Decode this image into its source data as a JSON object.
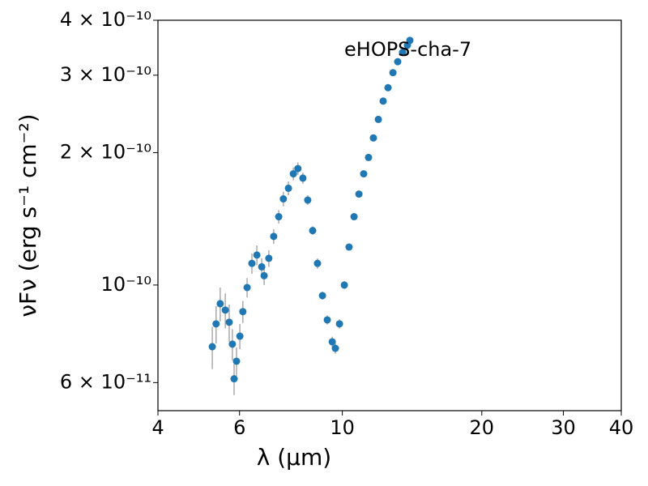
{
  "chart_data": {
    "type": "scatter",
    "annotation": "eHOPS-cha-7",
    "annotation_color": "#008000",
    "xlabel": "λ (μm)",
    "ylabel": "νFν (erg s⁻¹ cm⁻²)",
    "xlog": true,
    "ylog": true,
    "xlim": [
      4,
      40
    ],
    "xticks": [
      4,
      6,
      10,
      20,
      30,
      40
    ],
    "ylim": [
      5.18e-11,
      4e-10
    ],
    "yticks": [
      {
        "value": 6e-11,
        "label": "6 × 10⁻¹¹"
      },
      {
        "value": 1e-10,
        "label": "10⁻¹⁰"
      },
      {
        "value": 2e-10,
        "label": "2 × 10⁻¹⁰"
      },
      {
        "value": 3e-10,
        "label": "3 × 10⁻¹⁰"
      },
      {
        "value": 4e-10,
        "label": "4 × 10⁻¹⁰"
      }
    ],
    "color": "#1f77b4",
    "error_color": "#aaaaaa",
    "x": [
      5.24,
      5.34,
      5.45,
      5.59,
      5.7,
      5.79,
      5.84,
      5.91,
      6.01,
      6.1,
      6.23,
      6.38,
      6.54,
      6.7,
      6.78,
      6.94,
      7.11,
      7.29,
      7.46,
      7.65,
      7.84,
      8.02,
      8.22,
      8.42,
      8.63,
      8.84,
      9.06,
      9.28,
      9.51,
      9.66,
      9.86,
      10.1,
      10.34,
      10.6,
      10.86,
      11.12,
      11.39,
      11.67,
      11.96,
      12.25,
      12.55,
      12.86,
      13.17,
      13.49,
      13.82,
      13.99
    ],
    "values": [
      7.24e-11,
      8.16e-11,
      9.07e-11,
      8.77e-11,
      8.23e-11,
      7.34e-11,
      6.12e-11,
      6.71e-11,
      7.65e-11,
      8.7e-11,
      9.87e-11,
      1.12e-10,
      1.17e-10,
      1.1e-10,
      1.05e-10,
      1.15e-10,
      1.29e-10,
      1.43e-10,
      1.57e-10,
      1.66e-10,
      1.79e-10,
      1.84e-10,
      1.75e-10,
      1.56e-10,
      1.33e-10,
      1.12e-10,
      9.46e-11,
      8.33e-11,
      7.43e-11,
      7.18e-11,
      8.16e-11,
      1e-10,
      1.22e-10,
      1.43e-10,
      1.61e-10,
      1.79e-10,
      1.95e-10,
      2.16e-10,
      2.38e-10,
      2.62e-10,
      2.81e-10,
      3.04e-10,
      3.22e-10,
      3.38e-10,
      3.51e-10,
      3.6e-10
    ],
    "errors": [
      8e-12,
      8e-12,
      8e-12,
      8e-12,
      8e-12,
      6e-12,
      5e-12,
      5e-12,
      5e-12,
      5e-12,
      5e-12,
      6e-12,
      6e-12,
      5e-12,
      5e-12,
      5e-12,
      5e-12,
      5e-12,
      6e-12,
      6e-12,
      6e-12,
      6e-12,
      5e-12,
      4e-12,
      3e-12,
      3e-12,
      2e-12,
      2e-12,
      2e-12,
      2e-12,
      2e-12,
      2e-12,
      2e-12,
      2e-12,
      2e-12,
      2e-12,
      2e-12,
      2e-12,
      3e-12,
      3e-12,
      3e-12,
      3e-12,
      3e-12,
      3e-12,
      3e-12,
      3e-12
    ]
  }
}
